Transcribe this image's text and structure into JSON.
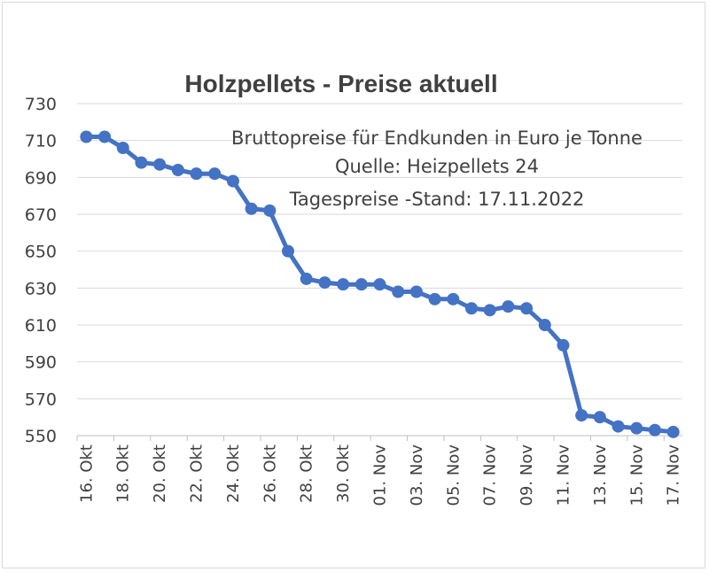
{
  "chart_data": {
    "type": "line",
    "title": "Holzpellets - Preise aktuell",
    "annotations": [
      "Bruttopreise für Endkunden in Euro je Tonne",
      "Quelle: Heizpellets 24",
      "Tagespreise -Stand: 17.11.2022"
    ],
    "xlabel": "",
    "ylabel": "",
    "ylim": [
      550,
      730
    ],
    "yticks": [
      730,
      710,
      690,
      670,
      650,
      630,
      610,
      590,
      570,
      550
    ],
    "x_tick_labels": [
      "16. Okt",
      "18. Okt",
      "20. Okt",
      "22. Okt",
      "24. Okt",
      "26. Okt",
      "28. Okt",
      "30. Okt",
      "01. Nov",
      "03. Nov",
      "05. Nov",
      "07. Nov",
      "09. Nov",
      "11. Nov",
      "13. Nov",
      "15. Nov",
      "17. Nov"
    ],
    "grid": true,
    "series_color": "#4472c4",
    "series": [
      {
        "x": [
          "16. Okt",
          "17. Okt",
          "18. Okt",
          "19. Okt",
          "20. Okt",
          "21. Okt",
          "22. Okt",
          "23. Okt",
          "24. Okt",
          "25. Okt",
          "26. Okt",
          "27. Okt",
          "28. Okt",
          "29. Okt",
          "30. Okt",
          "31. Okt",
          "01. Nov",
          "02. Nov",
          "03. Nov",
          "04. Nov",
          "05. Nov",
          "06. Nov",
          "07. Nov",
          "08. Nov",
          "09. Nov",
          "10. Nov",
          "11. Nov",
          "12. Nov",
          "13. Nov",
          "14. Nov",
          "15. Nov",
          "16. Nov",
          "17. Nov"
        ],
        "values": [
          712,
          712,
          706,
          698,
          697,
          694,
          692,
          692,
          688,
          673,
          672,
          650,
          635,
          633,
          632,
          632,
          632,
          628,
          628,
          624,
          624,
          619,
          618,
          620,
          619,
          610,
          599,
          561,
          560,
          555,
          554,
          553,
          552
        ]
      }
    ]
  }
}
